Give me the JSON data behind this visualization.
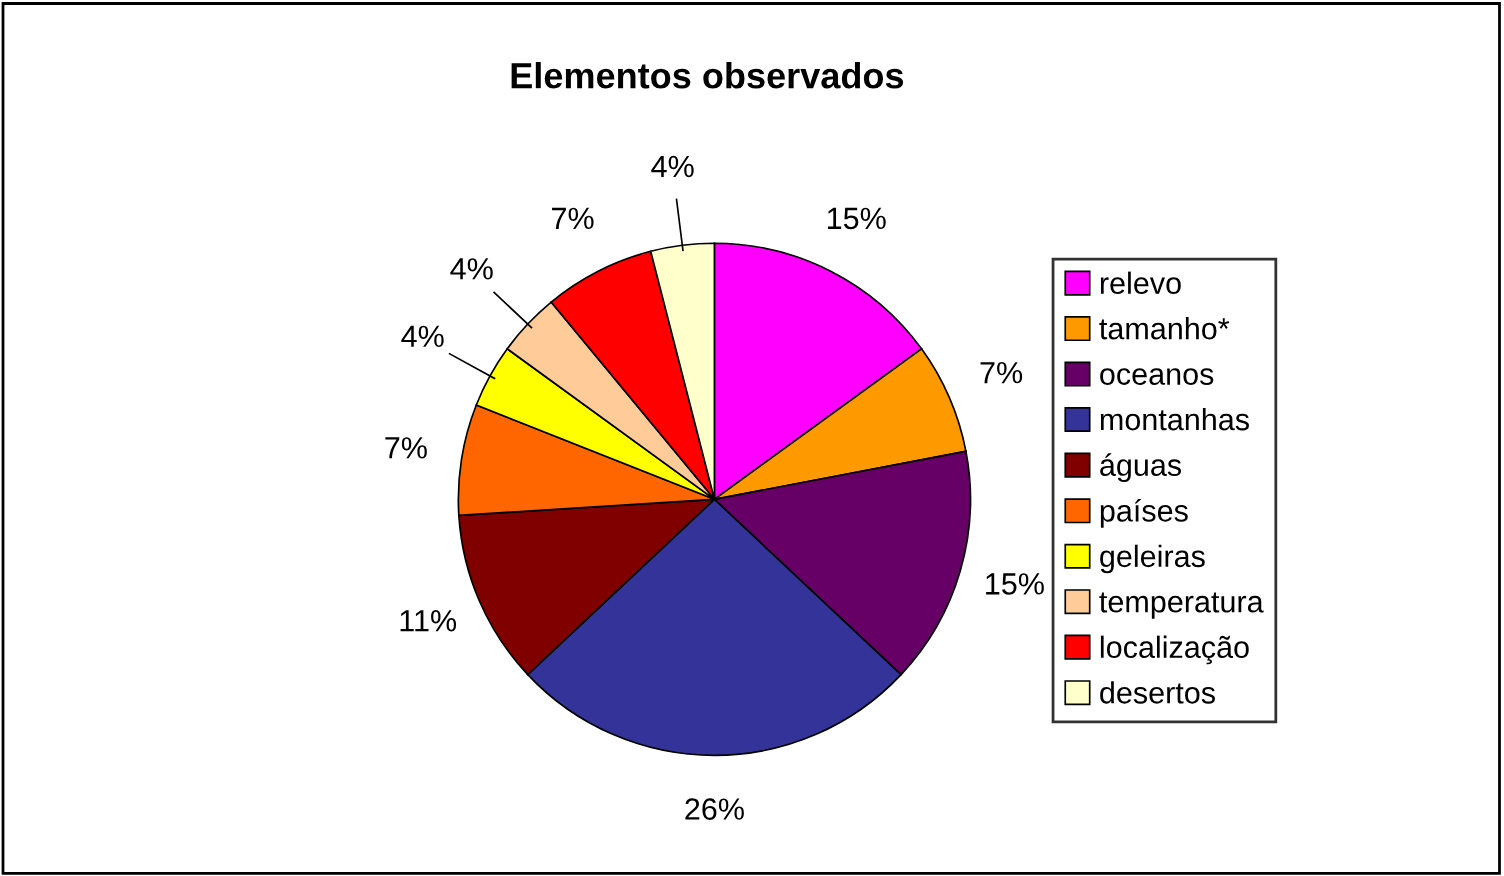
{
  "chart_data": {
    "type": "pie",
    "title": "Elementos observados",
    "categories": [
      "relevo",
      "tamanho*",
      "oceanos",
      "montanhas",
      "águas",
      "países",
      "geleiras",
      "temperatura",
      "localização",
      "desertos"
    ],
    "values": [
      15,
      7,
      15,
      26,
      11,
      7,
      4,
      4,
      7,
      4
    ],
    "value_labels": [
      "15%",
      "7%",
      "15%",
      "26%",
      "11%",
      "7%",
      "4%",
      "4%",
      "7%",
      "4%"
    ],
    "colors": [
      "#ff00ff",
      "#ff9900",
      "#660066",
      "#333399",
      "#800000",
      "#ff6600",
      "#ffff00",
      "#ffcc99",
      "#ff0000",
      "#ffffcc"
    ],
    "legend": "right"
  }
}
